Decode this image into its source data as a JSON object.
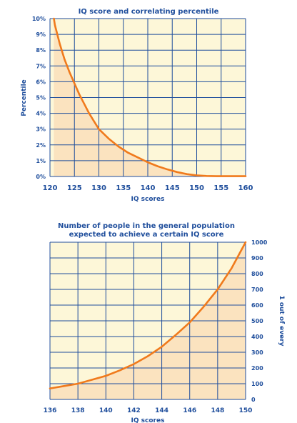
{
  "colors": {
    "plot_bg": "#fdf7d8",
    "grid": "#1f4e9c",
    "curve": "#f07a1c",
    "fill_under": "#fbe3bf",
    "text": "#1f4e9c"
  },
  "chart_data": [
    {
      "type": "line",
      "title": "IQ score and correlating percentile",
      "xlabel": "IQ scores",
      "ylabel": "Percentile",
      "xlim": [
        120,
        160
      ],
      "ylim": [
        0,
        10
      ],
      "x_ticks": [
        "120",
        "125",
        "130",
        "135",
        "140",
        "145",
        "150",
        "155",
        "160"
      ],
      "y_ticks": [
        "0%",
        "1%",
        "2%",
        "3%",
        "4%",
        "5%",
        "6%",
        "7%",
        "8%",
        "9%",
        "10%"
      ],
      "grid": true,
      "area_fill": true,
      "series": [
        {
          "x": [
            120.8,
            121,
            122,
            123,
            124,
            125,
            126,
            127,
            128,
            129,
            130,
            132,
            134,
            136,
            138,
            140,
            142,
            144,
            146,
            148,
            150,
            152,
            154,
            156,
            158,
            160
          ],
          "y": [
            10.0,
            9.6,
            8.4,
            7.4,
            6.6,
            5.9,
            5.2,
            4.6,
            4.0,
            3.5,
            3.0,
            2.4,
            1.9,
            1.5,
            1.2,
            0.9,
            0.65,
            0.45,
            0.28,
            0.15,
            0.07,
            0.03,
            0.02,
            0.02,
            0.02,
            0.02
          ]
        }
      ]
    },
    {
      "type": "line",
      "title": "Number of people in the general population expected to achieve a certain IQ score",
      "title_lines": [
        "Number of people in the general population",
        "expected to achieve a certain IQ score"
      ],
      "xlabel": "IQ scores",
      "ylabel": "1 out of every",
      "xlim": [
        136,
        150
      ],
      "ylim": [
        0,
        1000
      ],
      "x_ticks": [
        "136",
        "138",
        "140",
        "142",
        "144",
        "146",
        "148",
        "150"
      ],
      "y_ticks": [
        "0",
        "100",
        "200",
        "300",
        "400",
        "500",
        "600",
        "700",
        "800",
        "900",
        "1000"
      ],
      "grid": true,
      "area_fill": true,
      "series": [
        {
          "x": [
            136,
            137,
            138,
            139,
            140,
            141,
            142,
            143,
            144,
            145,
            146,
            147,
            148,
            149,
            150
          ],
          "y": [
            70,
            85,
            100,
            125,
            150,
            185,
            225,
            275,
            335,
            410,
            490,
            590,
            700,
            835,
            1000
          ]
        }
      ]
    }
  ]
}
